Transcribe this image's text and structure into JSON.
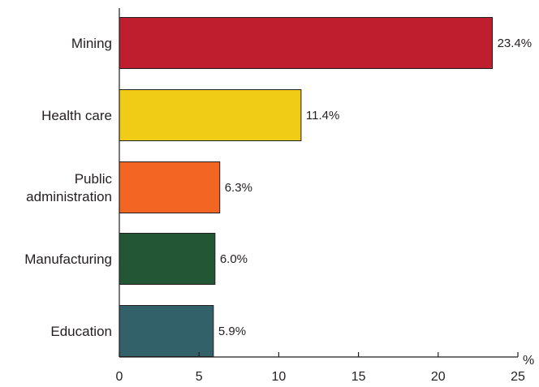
{
  "chart_data": {
    "type": "bar",
    "orientation": "horizontal",
    "categories": [
      [
        "Mining"
      ],
      [
        "Health care"
      ],
      [
        "Public",
        "administration"
      ],
      [
        "Manufacturing"
      ],
      [
        "Education"
      ]
    ],
    "values": [
      23.4,
      11.4,
      6.3,
      6.0,
      5.9
    ],
    "value_labels": [
      "23.4%",
      "11.4%",
      "6.3%",
      "6.0%",
      "5.9%"
    ],
    "colors": [
      "#be1e2d",
      "#f0cc16",
      "#f26522",
      "#235634",
      "#33616a"
    ],
    "xticks": [
      0,
      5,
      10,
      15,
      20,
      25
    ],
    "x_unit": "%",
    "xlim": [
      0,
      25
    ],
    "title": "",
    "xlabel": "",
    "ylabel": "",
    "grid": false,
    "legend": "none"
  }
}
